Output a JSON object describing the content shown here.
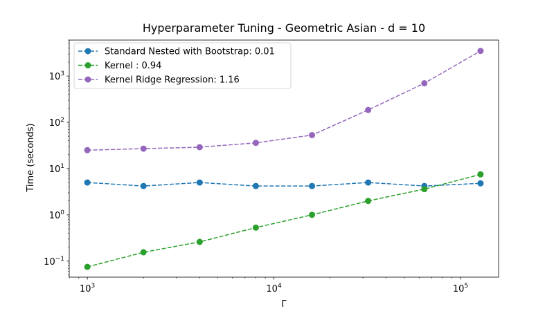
{
  "chart_data": {
    "type": "line",
    "title": "Hyperparameter Tuning - Geometric Asian - d = 10",
    "xlabel": "Γ",
    "ylabel": "Time (seconds)",
    "xscale": "log",
    "yscale": "log",
    "xlim": [
      800,
      160000
    ],
    "ylim": [
      0.045,
      6000
    ],
    "x": [
      1000,
      2000,
      4000,
      8000,
      16000,
      32000,
      64000,
      128000
    ],
    "x_ticks": [
      {
        "value": 1000,
        "base": "10",
        "exp": "3"
      },
      {
        "value": 10000,
        "base": "10",
        "exp": "4"
      },
      {
        "value": 100000,
        "base": "10",
        "exp": "5"
      }
    ],
    "y_ticks": [
      {
        "value": 0.1,
        "base": "10",
        "exp": "−1"
      },
      {
        "value": 1,
        "base": "10",
        "exp": "0"
      },
      {
        "value": 10,
        "base": "10",
        "exp": "1"
      },
      {
        "value": 100,
        "base": "10",
        "exp": "2"
      },
      {
        "value": 1000,
        "base": "10",
        "exp": "3"
      }
    ],
    "grid": false,
    "legend_position": "top-left",
    "series": [
      {
        "name": "Standard Nested with Bootstrap: 0.01",
        "color": "#1f77b4",
        "values": [
          5.0,
          4.2,
          5.0,
          4.2,
          4.2,
          5.0,
          4.2,
          4.8
        ]
      },
      {
        "name": "Kernel : 0.94",
        "color": "#2ca02c",
        "values": [
          0.075,
          0.155,
          0.26,
          0.53,
          1.0,
          2.0,
          3.6,
          7.5
        ]
      },
      {
        "name": "Kernel Ridge Regression: 1.16",
        "color": "#9467bd",
        "values": [
          25,
          27,
          29,
          36,
          53,
          185,
          700,
          3500
        ]
      }
    ]
  }
}
